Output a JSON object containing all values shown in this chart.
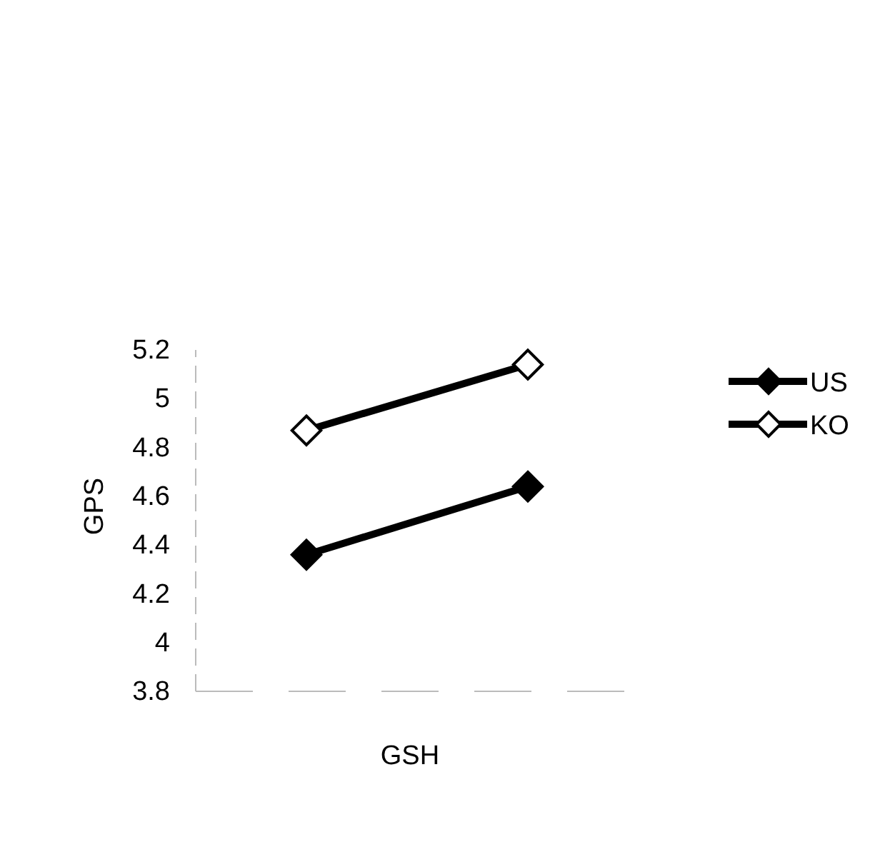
{
  "chart_data": {
    "type": "line",
    "xlabel": "GSH",
    "ylabel": "GPS",
    "categories": [
      null,
      null
    ],
    "series": [
      {
        "name": "US",
        "color": "#000000",
        "values": [
          4.36,
          4.64
        ]
      },
      {
        "name": "KO",
        "color": "#000000",
        "values": [
          4.87,
          5.14
        ]
      }
    ],
    "ylim": [
      3.8,
      5.2
    ],
    "yticks": [
      3.8,
      4,
      4.2,
      4.4,
      4.6,
      4.8,
      5,
      5.2
    ],
    "marker": "diamond",
    "line_style": "solid",
    "grid": false,
    "legend": "top right"
  }
}
